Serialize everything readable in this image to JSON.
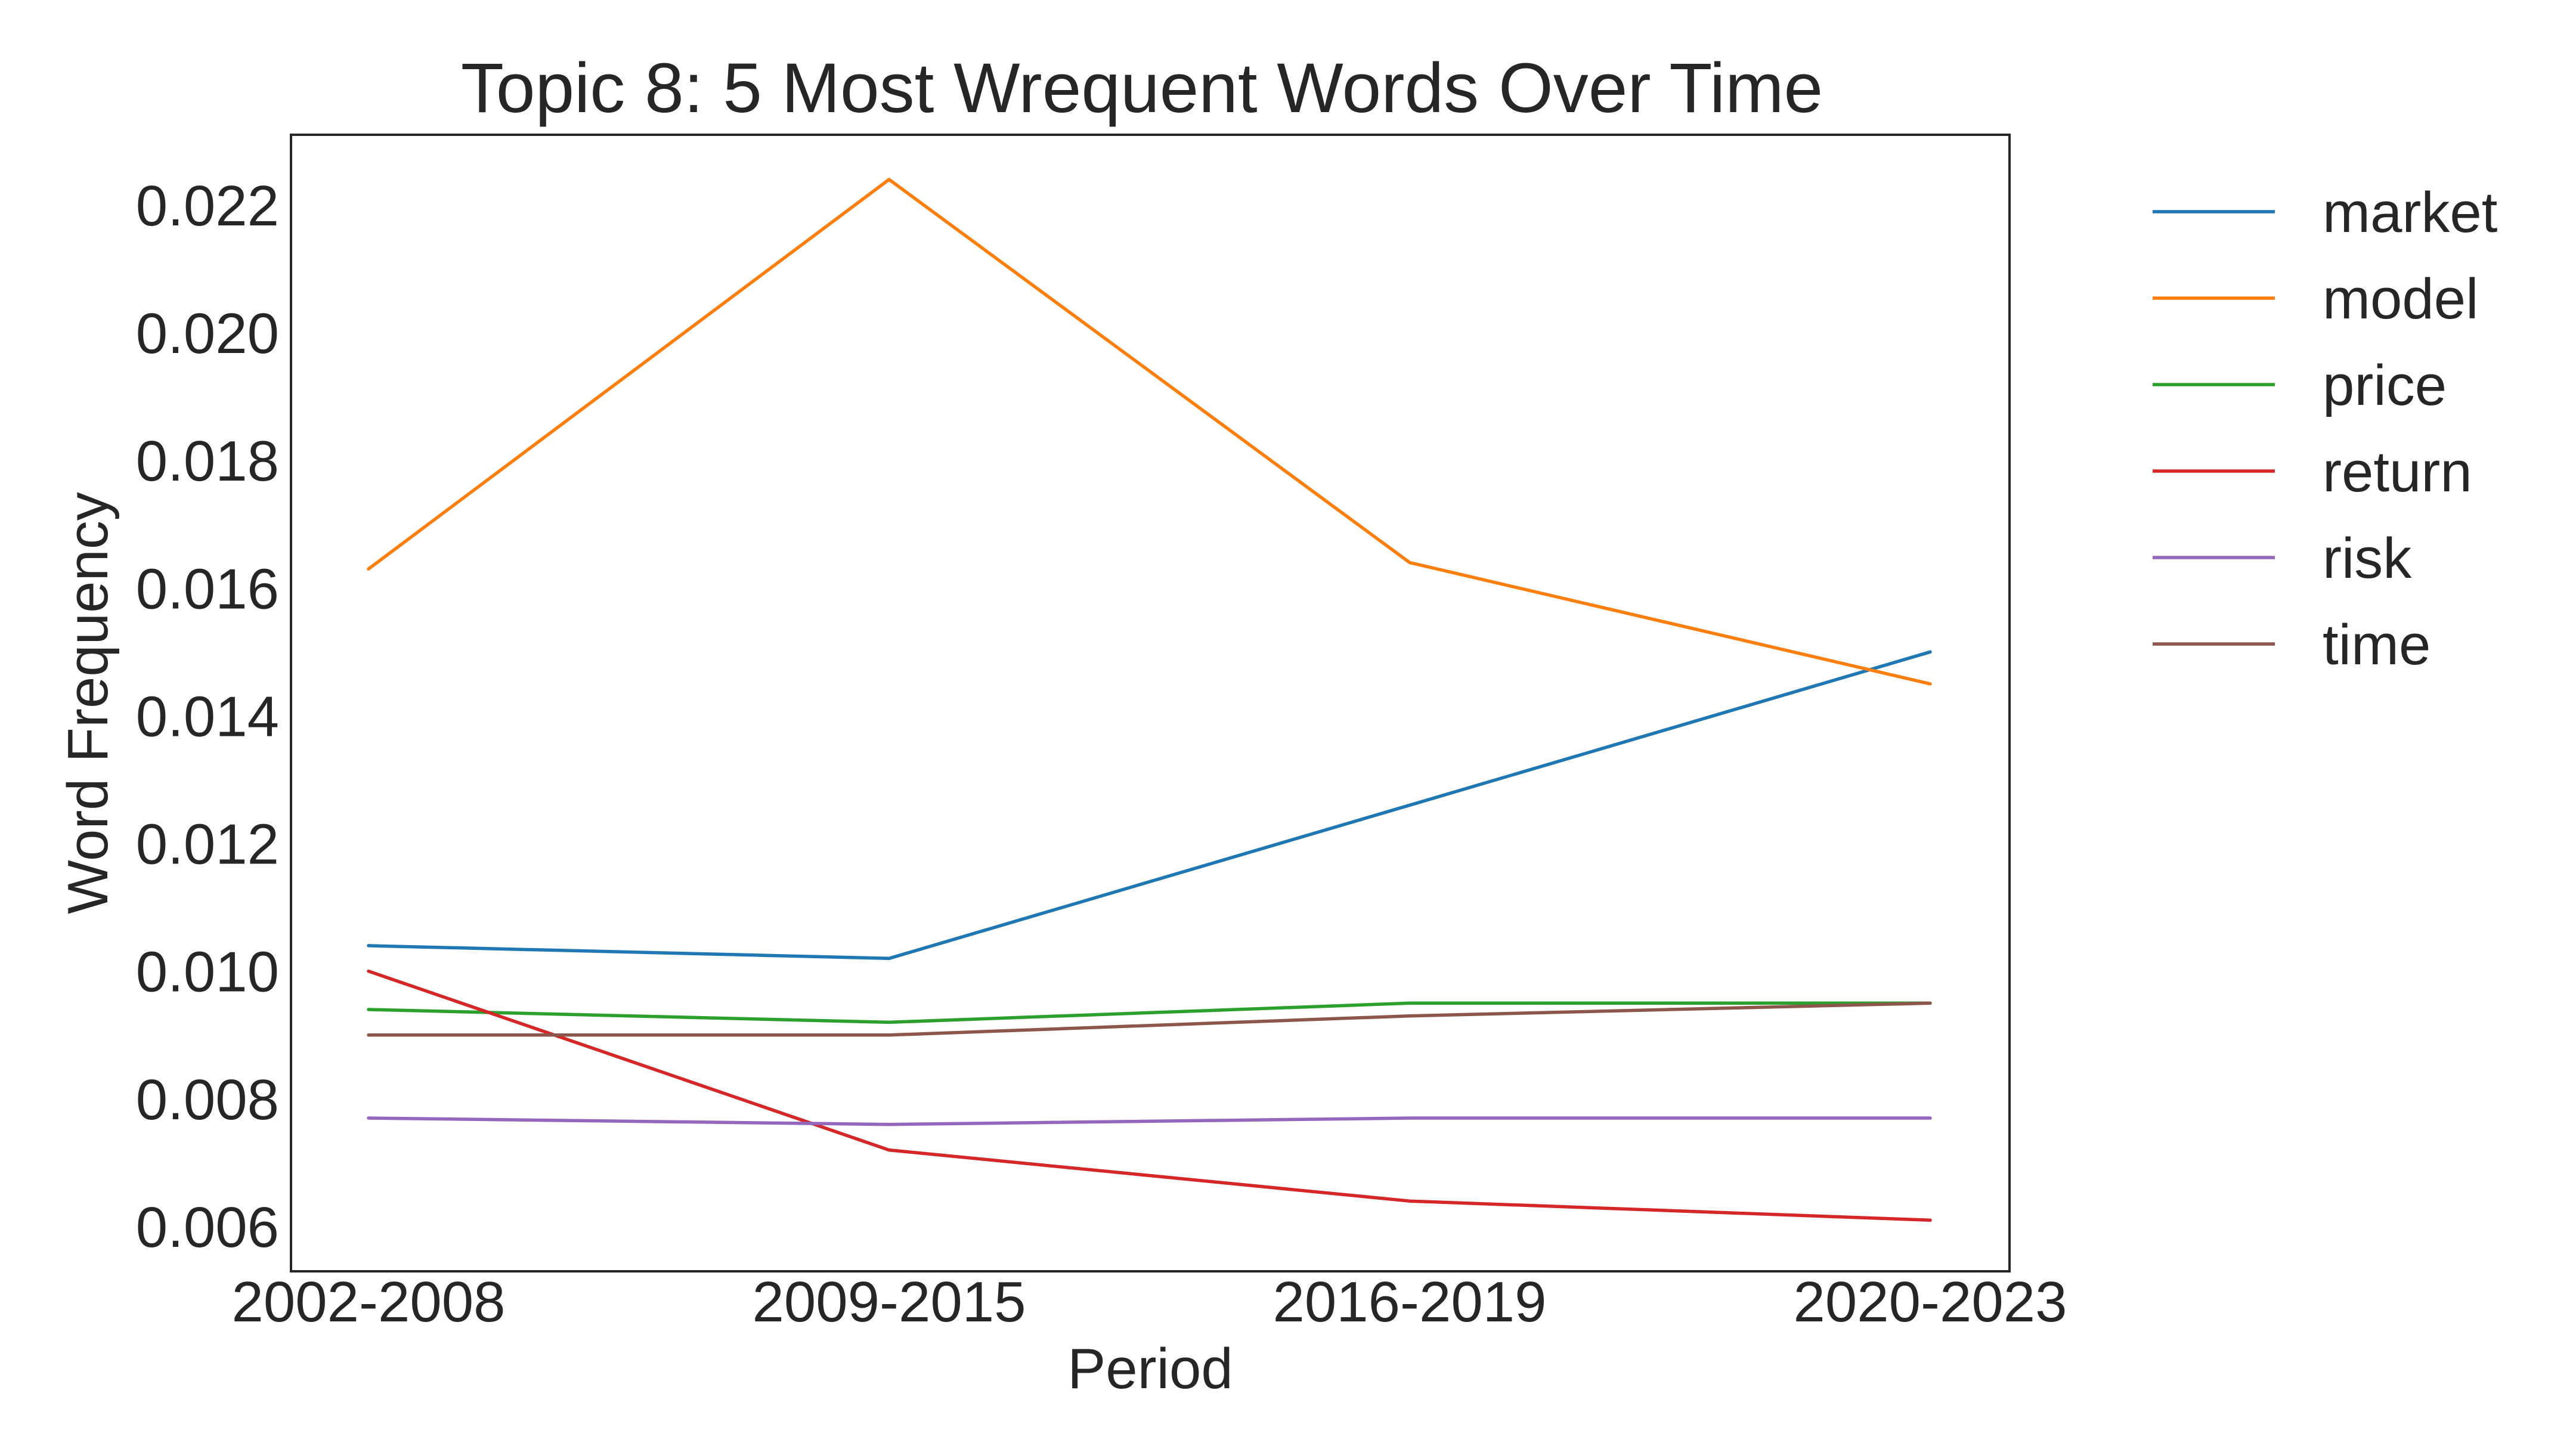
{
  "chart_data": {
    "type": "line",
    "title": "Topic 8: 5 Most Wrequent Words Over Time",
    "xlabel": "Period",
    "ylabel": "Word Frequency",
    "categories": [
      "2002-2008",
      "2009-2015",
      "2016-2019",
      "2020-2023"
    ],
    "ylim": [
      0.0053,
      0.0231
    ],
    "yticks": [
      0.006,
      0.008,
      0.01,
      0.012,
      0.014,
      0.016,
      0.018,
      0.02,
      0.022
    ],
    "ytick_labels": [
      "0.006",
      "0.008",
      "0.010",
      "0.012",
      "0.014",
      "0.016",
      "0.018",
      "0.020",
      "0.022"
    ],
    "grid": false,
    "legend_position": "outside-right-top",
    "series": [
      {
        "name": "market",
        "color": "#1f77b4",
        "values": [
          0.0104,
          0.0102,
          0.0126,
          0.015
        ]
      },
      {
        "name": "model",
        "color": "#ff7f0e",
        "values": [
          0.0163,
          0.0224,
          0.0164,
          0.0145
        ]
      },
      {
        "name": "price",
        "color": "#2ca02c",
        "values": [
          0.0094,
          0.0092,
          0.0095,
          0.0095
        ]
      },
      {
        "name": "return",
        "color": "#d62728",
        "values": [
          0.01,
          0.0072,
          0.0064,
          0.0061
        ]
      },
      {
        "name": "risk",
        "color": "#9467bd",
        "values": [
          0.0077,
          0.0076,
          0.0077,
          0.0077
        ]
      },
      {
        "name": "time",
        "color": "#8c564b",
        "values": [
          0.009,
          0.009,
          0.0093,
          0.0095
        ]
      }
    ]
  }
}
